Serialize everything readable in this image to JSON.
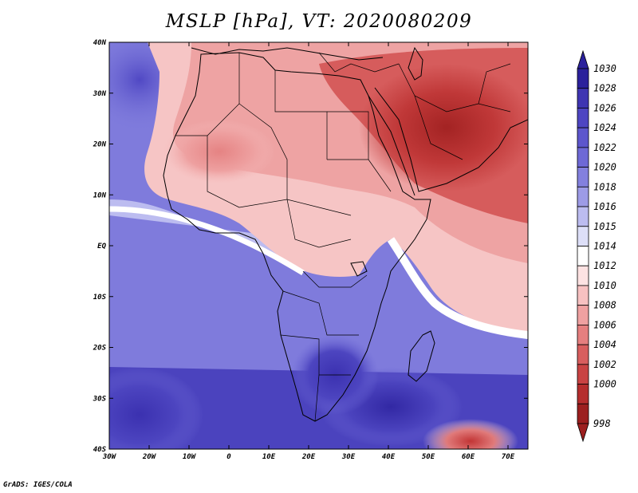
{
  "title": "MSLP [hPa], VT: 2020080209",
  "credit": "GrADS: IGES/COLA",
  "lat_labels": [
    "40N",
    "30N",
    "20N",
    "10N",
    "EQ",
    "10S",
    "20S",
    "30S",
    "40S"
  ],
  "lon_labels": [
    "30W",
    "20W",
    "10W",
    "0",
    "10E",
    "20E",
    "30E",
    "40E",
    "50E",
    "60E",
    "70E"
  ],
  "colorbar": {
    "levels": [
      "1030",
      "1028",
      "1026",
      "1024",
      "1022",
      "1020",
      "1018",
      "1016",
      "1015",
      "1014",
      "1012",
      "1010",
      "1008",
      "1006",
      "1004",
      "1002",
      "1000",
      "998"
    ],
    "colors": [
      "#2b219c",
      "#3f35b2",
      "#4e45c2",
      "#5d56cd",
      "#6e69d6",
      "#8380de",
      "#9d9be6",
      "#bcbcf0",
      "#dddff8",
      "#ffffff",
      "#fde2e2",
      "#f7c1c1",
      "#efa1a1",
      "#e57f7f",
      "#d85e5e",
      "#c94343",
      "#b52d2d",
      "#9c1f1f"
    ]
  }
}
